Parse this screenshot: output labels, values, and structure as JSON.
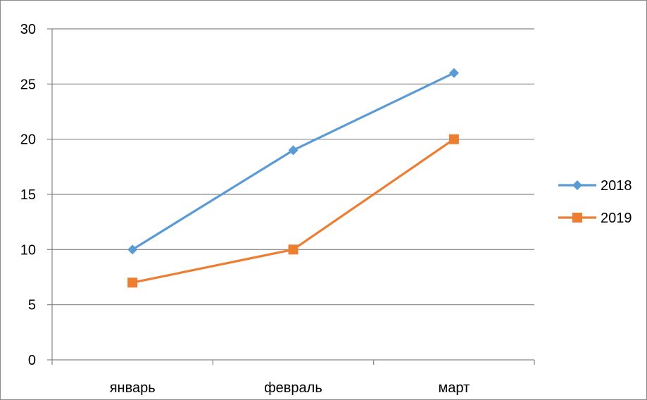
{
  "chart_data": {
    "type": "line",
    "categories": [
      "январь",
      "февраль",
      "март"
    ],
    "series": [
      {
        "name": "2018",
        "values": [
          10,
          19,
          26
        ],
        "color": "#5B9BD5",
        "marker": "diamond"
      },
      {
        "name": "2019",
        "values": [
          7,
          10,
          20
        ],
        "color": "#ED7D31",
        "marker": "square"
      }
    ],
    "ylim": [
      0,
      30
    ],
    "yticks": [
      0,
      5,
      10,
      15,
      20,
      25,
      30
    ],
    "grid": true,
    "legend_position": "right"
  }
}
